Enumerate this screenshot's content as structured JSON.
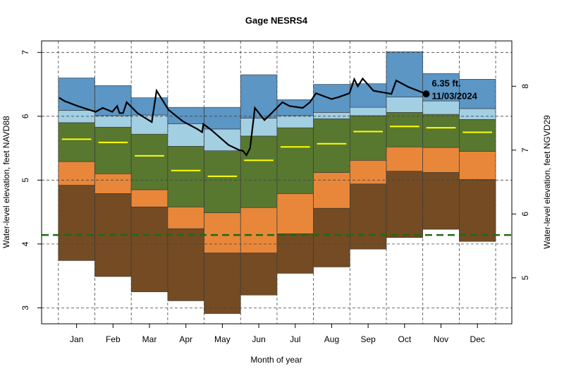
{
  "chart_data": {
    "type": "percentile-bands",
    "title": "Gage NESRS4",
    "x_label": "Month of year",
    "y_label": "Water-level elevation, feet NAVD88",
    "y2_label": "Water-level elevation, feet NGVD29",
    "categories": [
      "Jan",
      "Feb",
      "Mar",
      "Apr",
      "May",
      "Jun",
      "Jul",
      "Aug",
      "Sep",
      "Oct",
      "Nov",
      "Dec"
    ],
    "ylim": [
      2.75,
      7.18
    ],
    "yticks": [
      3,
      4,
      5,
      6,
      7
    ],
    "y2lim": [
      4.28,
      8.71
    ],
    "y2ticks": [
      5,
      6,
      7,
      8
    ],
    "xlim": [
      -14,
      378.5
    ],
    "grid": true,
    "floor": [
      3.74,
      3.49,
      3.25,
      3.11,
      2.91,
      3.2,
      3.54,
      3.64,
      3.92,
      4.1,
      4.23,
      4.04
    ],
    "bands": [
      {
        "color": "#744b23",
        "values": [
          4.92,
          4.79,
          4.58,
          4.24,
          3.86,
          3.86,
          4.16,
          4.56,
          4.94,
          5.14,
          5.12,
          5.01
        ]
      },
      {
        "color": "#e8873a",
        "values": [
          5.29,
          5.1,
          4.85,
          4.58,
          4.49,
          4.57,
          4.79,
          5.12,
          5.31,
          5.52,
          5.51,
          5.45
        ]
      },
      {
        "color": "#58782f",
        "values": [
          5.9,
          5.83,
          5.72,
          5.53,
          5.46,
          5.69,
          5.82,
          5.96,
          6.01,
          6.06,
          6.03,
          5.95
        ]
      },
      {
        "color": "#a3cfe3",
        "values": [
          6.09,
          6.01,
          6.02,
          5.88,
          5.8,
          5.97,
          6.01,
          6.06,
          6.14,
          6.3,
          6.24,
          6.12
        ]
      },
      {
        "color": "#5b96c5",
        "values": [
          6.6,
          6.48,
          6.29,
          6.14,
          6.14,
          6.65,
          6.26,
          6.5,
          6.51,
          7.01,
          6.67,
          6.58
        ]
      }
    ],
    "median": {
      "color": "#ffff00",
      "values": [
        5.64,
        5.59,
        5.38,
        5.15,
        5.06,
        5.31,
        5.52,
        5.57,
        5.76,
        5.84,
        5.82,
        5.75
      ]
    },
    "current": {
      "color": "#000000",
      "x": [
        0.6,
        5,
        16,
        31,
        37,
        45,
        49,
        51,
        54,
        57,
        66,
        78,
        82,
        92,
        104,
        116,
        120,
        121,
        128,
        142,
        151,
        154,
        157,
        160,
        164,
        172,
        178,
        187,
        193,
        204,
        210,
        215,
        228,
        234,
        243,
        247,
        250,
        254,
        263,
        278,
        282,
        292,
        307
      ],
      "values": [
        6.29,
        6.24,
        6.16,
        6.07,
        6.13,
        6.07,
        6.16,
        6.05,
        6.05,
        6.22,
        6.05,
        5.91,
        6.4,
        6.1,
        5.92,
        5.8,
        5.75,
        5.88,
        5.78,
        5.55,
        5.47,
        5.46,
        5.39,
        5.5,
        6.13,
        5.94,
        6.05,
        6.22,
        6.16,
        6.13,
        6.22,
        6.36,
        6.27,
        6.3,
        6.36,
        6.58,
        6.47,
        6.59,
        6.4,
        6.35,
        6.56,
        6.46,
        6.35
      ]
    },
    "annotation": {
      "value_text": "6.35 ft.",
      "date_text": "11/03/2024"
    },
    "reference_line": {
      "value": 4.14,
      "color": "#1e6b12"
    }
  }
}
